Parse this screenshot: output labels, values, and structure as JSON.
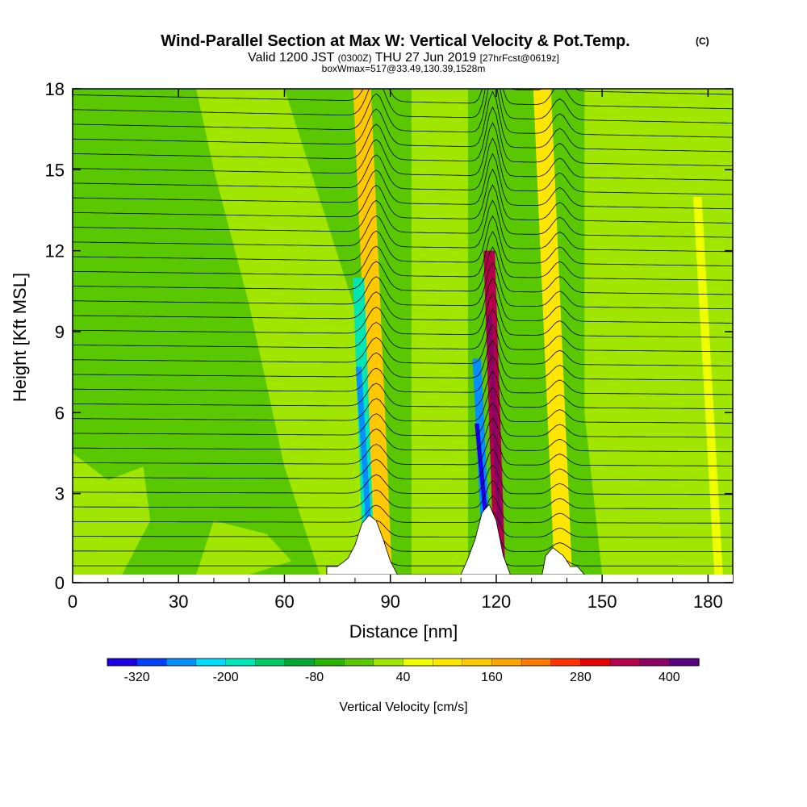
{
  "chart_data": {
    "type": "heatmap",
    "title": "Wind-Parallel Section at Max W: Vertical Velocity & Pot.Temp.",
    "title_mark": "(C)",
    "subtitle": {
      "valid": "Valid 1200 JST",
      "zulu": "(0300Z)",
      "date": "THU 27 Jun 2019",
      "forecast": "[27hrFcst@0619z]"
    },
    "box_note": "boxWmax=517@33.49,130.39,1528m",
    "xlabel": "Distance [nm]",
    "ylabel": "Height [Kft MSL]",
    "xlim": [
      0,
      187
    ],
    "ylim": [
      0,
      18
    ],
    "xticks": [
      "0",
      "30",
      "60",
      "90",
      "120",
      "150",
      "180"
    ],
    "xtick_values": [
      0,
      30,
      60,
      90,
      120,
      150,
      180
    ],
    "yticks": [
      "0",
      "3",
      "6",
      "9",
      "12",
      "15",
      "18"
    ],
    "ytick_values": [
      0,
      3,
      6,
      9,
      12,
      15,
      18
    ],
    "colorbar": {
      "label": "Vertical Velocity [cm/s]",
      "tick_labels": [
        "-320",
        "-200",
        "-80",
        "40",
        "160",
        "280",
        "400"
      ],
      "tick_values": [
        -320,
        -200,
        -80,
        40,
        160,
        280,
        400
      ],
      "levels": [
        -360,
        -320,
        -280,
        -240,
        -200,
        -160,
        -120,
        -80,
        -40,
        0,
        40,
        80,
        120,
        160,
        200,
        240,
        280,
        320,
        360,
        400,
        440
      ],
      "colors": [
        "#1a00e6",
        "#0040ff",
        "#0090ff",
        "#00dcff",
        "#00e6b4",
        "#00c864",
        "#00aa32",
        "#28b400",
        "#5ac800",
        "#a0e600",
        "#f0ff00",
        "#ffe600",
        "#ffc800",
        "#ffa500",
        "#ff7800",
        "#ff3200",
        "#e60000",
        "#b4004b",
        "#8c0064",
        "#5a0082"
      ]
    },
    "terrain": [
      {
        "x": 72,
        "h": 0.3
      },
      {
        "x": 75,
        "h": 0.3
      },
      {
        "x": 78,
        "h": 0.6
      },
      {
        "x": 80,
        "h": 1.1
      },
      {
        "x": 82,
        "h": 1.9
      },
      {
        "x": 84,
        "h": 2.2
      },
      {
        "x": 86,
        "h": 2.0
      },
      {
        "x": 88,
        "h": 1.3
      },
      {
        "x": 90,
        "h": 0.5
      },
      {
        "x": 92,
        "h": 0.0
      },
      {
        "x": 110,
        "h": 0.0
      },
      {
        "x": 112,
        "h": 0.6
      },
      {
        "x": 114,
        "h": 1.3
      },
      {
        "x": 116,
        "h": 2.3
      },
      {
        "x": 118,
        "h": 2.6
      },
      {
        "x": 120,
        "h": 2.0
      },
      {
        "x": 122,
        "h": 0.7
      },
      {
        "x": 124,
        "h": 0.0
      },
      {
        "x": 133,
        "h": 0.0
      },
      {
        "x": 134,
        "h": 0.7
      },
      {
        "x": 136,
        "h": 1.0
      },
      {
        "x": 139,
        "h": 0.7
      },
      {
        "x": 141,
        "h": 0.3
      },
      {
        "x": 143,
        "h": 0.3
      },
      {
        "x": 145,
        "h": 0.0
      }
    ],
    "updraft_features": [
      {
        "name": "upshear-updraft-1",
        "x": 88,
        "w": 2.5,
        "top": 18,
        "value": 120
      },
      {
        "name": "main-updraft",
        "x": 121,
        "w": 1.6,
        "top": 12,
        "value": 320
      },
      {
        "name": "east-updraft",
        "x": 139,
        "w": 2.5,
        "top": 18,
        "value": 80
      },
      {
        "name": "downdraft-1",
        "x": 84,
        "w": 1.6,
        "top": 11,
        "value": -200
      },
      {
        "name": "downdraft-2",
        "x": 117.5,
        "w": 1.2,
        "top": 8,
        "value": -280
      },
      {
        "name": "east-edge-updraft",
        "x": 183,
        "w": 1.2,
        "top": 14,
        "value": 60
      }
    ],
    "grid": false,
    "legend": "bottom",
    "isentrope_count": 34
  }
}
